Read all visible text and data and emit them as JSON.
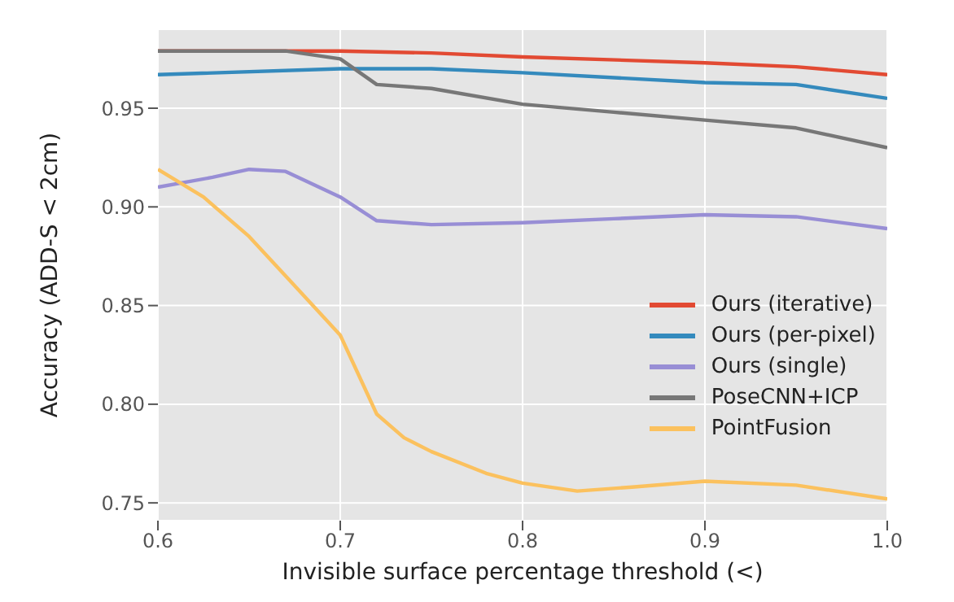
{
  "chart_data": {
    "type": "line",
    "xlabel": "Invisible surface percentage threshold (<)",
    "ylabel": "Accuracy (ADD-S < 2cm)",
    "xlim": [
      0.6,
      1.0
    ],
    "xticks": [
      0.6,
      0.7,
      0.8,
      0.9,
      {
        "value": 1.0,
        "label": "1.0"
      }
    ],
    "ylim": [
      0.741,
      0.99
    ],
    "yticks": [
      0.75,
      {
        "value": 0.8,
        "label": "0.80"
      },
      0.85,
      {
        "value": 0.9,
        "label": "0.90"
      },
      0.95
    ],
    "grid": true,
    "legend": "right",
    "marker": "none",
    "line_style": "solid",
    "series": [
      {
        "name": "Ours (iterative)",
        "color": "#e24a33",
        "x": [
          0.6,
          0.7,
          0.75,
          0.8,
          0.9,
          0.95,
          1.0
        ],
        "values": [
          0.979,
          0.979,
          0.978,
          0.976,
          0.973,
          0.971,
          0.967
        ]
      },
      {
        "name": "Ours (per-pixel)",
        "color": "#348abd",
        "x": [
          0.6,
          0.7,
          0.75,
          0.8,
          0.9,
          0.95,
          1.0
        ],
        "values": [
          0.967,
          0.97,
          0.97,
          0.968,
          0.963,
          0.962,
          0.955
        ]
      },
      {
        "name": "Ours (single)",
        "color": "#988ed5",
        "x": [
          0.6,
          0.63,
          0.65,
          0.67,
          0.7,
          0.72,
          0.75,
          0.8,
          0.85,
          0.9,
          0.95,
          1.0
        ],
        "values": [
          0.91,
          0.915,
          0.919,
          0.918,
          0.905,
          0.893,
          0.891,
          0.892,
          0.894,
          0.896,
          0.895,
          0.889
        ]
      },
      {
        "name": "PoseCNN+ICP",
        "color": "#777777",
        "x": [
          0.6,
          0.67,
          0.7,
          0.72,
          0.75,
          0.8,
          0.85,
          0.9,
          0.95,
          1.0
        ],
        "values": [
          0.979,
          0.979,
          0.975,
          0.962,
          0.96,
          0.952,
          0.948,
          0.944,
          0.94,
          0.93
        ]
      },
      {
        "name": "PointFusion",
        "color": "#fbc15e",
        "x": [
          0.6,
          0.625,
          0.65,
          0.675,
          0.7,
          0.71,
          0.72,
          0.735,
          0.75,
          0.78,
          0.8,
          0.83,
          0.86,
          0.9,
          0.95,
          1.0
        ],
        "values": [
          0.919,
          0.905,
          0.885,
          0.86,
          0.835,
          0.815,
          0.795,
          0.783,
          0.776,
          0.765,
          0.76,
          0.756,
          0.758,
          0.761,
          0.759,
          0.752
        ]
      }
    ]
  }
}
